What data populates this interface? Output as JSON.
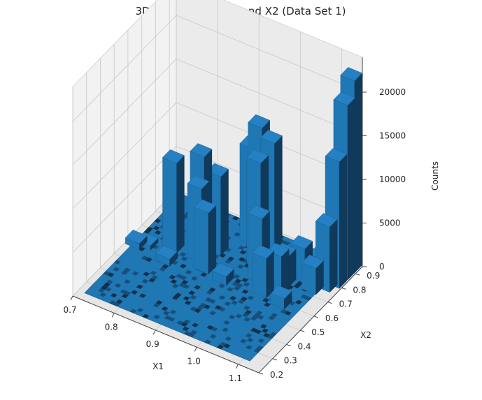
{
  "chart_data": {
    "type": "bar3d",
    "title": "3D Histogram of X1 and X2 (Data Set 1)",
    "xlabel": "X1",
    "ylabel": "X2",
    "zlabel": "Counts",
    "xlim": [
      0.7,
      1.15
    ],
    "ylim": [
      0.2,
      0.95
    ],
    "zlim": [
      0,
      24000
    ],
    "x_ticks": [
      "0.7",
      "0.8",
      "0.9",
      "1.0",
      "1.1"
    ],
    "y_ticks": [
      "0.2",
      "0.3",
      "0.4",
      "0.5",
      "0.6",
      "0.7",
      "0.8",
      "0.9"
    ],
    "z_ticks": [
      "0",
      "5000",
      "10000",
      "15000",
      "20000"
    ],
    "grid": true,
    "bar_color": "#1f77b4",
    "bars": [
      {
        "x": 0.83,
        "y": 0.74,
        "count": 10500
      },
      {
        "x": 0.79,
        "y": 0.66,
        "count": 10300
      },
      {
        "x": 0.87,
        "y": 0.74,
        "count": 9000
      },
      {
        "x": 0.85,
        "y": 0.66,
        "count": 8500
      },
      {
        "x": 0.88,
        "y": 0.62,
        "count": 7000
      },
      {
        "x": 0.94,
        "y": 0.83,
        "count": 14500
      },
      {
        "x": 0.98,
        "y": 0.8,
        "count": 14000
      },
      {
        "x": 0.91,
        "y": 0.86,
        "count": 11000
      },
      {
        "x": 0.96,
        "y": 0.76,
        "count": 12000
      },
      {
        "x": 0.99,
        "y": 0.68,
        "count": 7500
      },
      {
        "x": 1.04,
        "y": 0.72,
        "count": 3500
      },
      {
        "x": 1.02,
        "y": 0.62,
        "count": 4500
      },
      {
        "x": 1.05,
        "y": 0.64,
        "count": 5000
      },
      {
        "x": 1.06,
        "y": 0.78,
        "count": 3800
      },
      {
        "x": 1.09,
        "y": 0.82,
        "count": 2500
      },
      {
        "x": 1.1,
        "y": 0.74,
        "count": 3000
      },
      {
        "x": 1.11,
        "y": 0.85,
        "count": 2000
      },
      {
        "x": 1.13,
        "y": 0.93,
        "count": 22000
      },
      {
        "x": 1.13,
        "y": 0.88,
        "count": 20000
      },
      {
        "x": 1.13,
        "y": 0.82,
        "count": 14500
      },
      {
        "x": 1.12,
        "y": 0.78,
        "count": 7500
      },
      {
        "x": 0.72,
        "y": 0.6,
        "count": 700
      },
      {
        "x": 0.74,
        "y": 0.62,
        "count": 500
      },
      {
        "x": 0.8,
        "y": 0.58,
        "count": 800
      },
      {
        "x": 0.93,
        "y": 0.6,
        "count": 1000
      },
      {
        "x": 1.07,
        "y": 0.6,
        "count": 1200
      }
    ]
  }
}
